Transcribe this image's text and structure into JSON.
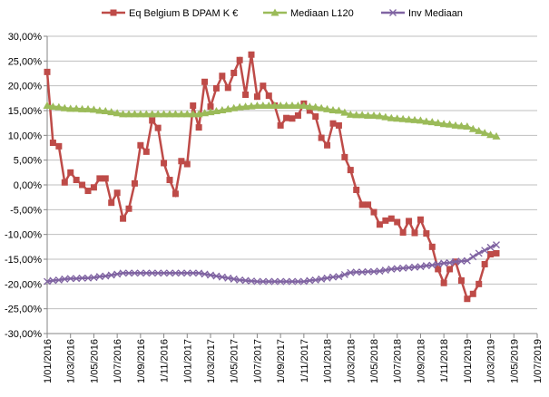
{
  "chart_data": {
    "type": "line",
    "categories": [
      "1/01/2016",
      null,
      null,
      null,
      "1/03/2016",
      null,
      null,
      null,
      "1/05/2016",
      null,
      null,
      null,
      "1/07/2016",
      null,
      null,
      null,
      "1/09/2016",
      null,
      null,
      null,
      "1/11/2016",
      null,
      null,
      null,
      "1/01/2017",
      null,
      null,
      null,
      "1/03/2017",
      null,
      null,
      null,
      "1/05/2017",
      null,
      null,
      null,
      "1/07/2017",
      null,
      null,
      null,
      "1/09/2017",
      null,
      null,
      null,
      "1/11/2017",
      null,
      null,
      null,
      "1/01/2018",
      null,
      null,
      null,
      "1/03/2018",
      null,
      null,
      null,
      "1/05/2018",
      null,
      null,
      null,
      "1/07/2018",
      null,
      null,
      null,
      "1/09/2018",
      null,
      null,
      null,
      "1/11/2018",
      null,
      null,
      null,
      "1/01/2019",
      null,
      null,
      null,
      "1/03/2019",
      null,
      null,
      null,
      "1/05/2019",
      null,
      null,
      null,
      "1/07/2019"
    ],
    "series": [
      {
        "name": "Eq Belgium B DPAM K €",
        "color": "#be4b48",
        "marker": "square",
        "values": [
          22.8,
          8.5,
          7.8,
          0.5,
          2.5,
          1.0,
          0,
          -1.2,
          -0.5,
          1.3,
          1.3,
          -3.6,
          -1.6,
          -6.8,
          -4.8,
          0.3,
          8,
          6.7,
          13,
          11.5,
          4.4,
          1,
          -1.8,
          4.8,
          4.2,
          16,
          11.6,
          20.8,
          15.8,
          19.5,
          22,
          19.6,
          22.6,
          25.2,
          18.2,
          26.3,
          17.8,
          20,
          18,
          16,
          12,
          13.5,
          13.4,
          14,
          16.4,
          15,
          13.8,
          9.5,
          8,
          12.4,
          12,
          5.6,
          3,
          -1,
          -4,
          -4,
          -5.5,
          -8,
          -7.2,
          -6.8,
          -7.5,
          -9.6,
          -7.3,
          -9.7,
          -7,
          -9.8,
          -12.5,
          -17,
          -19.8,
          -17,
          -15.5,
          -19.3,
          -23,
          -22,
          -20,
          -16,
          -14,
          -13.8,
          null,
          null,
          null,
          null,
          null,
          null,
          null
        ]
      },
      {
        "name": "Mediaan L120",
        "color": "#9bbb59",
        "marker": "triangle",
        "values": [
          16,
          15.8,
          15.7,
          15.5,
          15.4,
          15.4,
          15.3,
          15.3,
          15.2,
          15,
          14.9,
          14.7,
          14.5,
          14.3,
          14.3,
          14.3,
          14.3,
          14.3,
          14.3,
          14.3,
          14.3,
          14.3,
          14.3,
          14.3,
          14.3,
          14.3,
          14.3,
          14.5,
          14.7,
          14.9,
          15.1,
          15.3,
          15.5,
          15.7,
          15.8,
          15.9,
          16,
          16,
          16,
          16,
          16,
          16,
          16,
          16,
          16,
          15.8,
          15.7,
          15.5,
          15.3,
          15.1,
          15,
          14.6,
          14.2,
          14.1,
          14.1,
          14,
          14,
          13.9,
          13.7,
          13.5,
          13.4,
          13.3,
          13.2,
          13.1,
          13,
          12.8,
          12.7,
          12.5,
          12.3,
          12.2,
          12,
          11.9,
          11.8,
          11.3,
          10.9,
          10.5,
          10.1,
          9.8,
          null,
          null,
          null,
          null,
          null,
          null,
          null
        ]
      },
      {
        "name": "Inv Mediaan",
        "color": "#8064a2",
        "marker": "x",
        "values": [
          -19.5,
          -19.3,
          -19.2,
          -19,
          -18.9,
          -18.9,
          -18.8,
          -18.8,
          -18.7,
          -18.5,
          -18.4,
          -18.2,
          -18,
          -17.8,
          -17.8,
          -17.8,
          -17.8,
          -17.8,
          -17.8,
          -17.8,
          -17.8,
          -17.8,
          -17.8,
          -17.8,
          -17.8,
          -17.8,
          -17.8,
          -18,
          -18.2,
          -18.4,
          -18.6,
          -18.8,
          -19,
          -19.2,
          -19.3,
          -19.4,
          -19.5,
          -19.5,
          -19.5,
          -19.5,
          -19.5,
          -19.5,
          -19.5,
          -19.5,
          -19.5,
          -19.3,
          -19.2,
          -19,
          -18.8,
          -18.6,
          -18.5,
          -18.1,
          -17.7,
          -17.6,
          -17.6,
          -17.5,
          -17.5,
          -17.4,
          -17.2,
          -17,
          -16.9,
          -16.8,
          -16.7,
          -16.6,
          -16.5,
          -16.3,
          -16.2,
          -16,
          -15.8,
          -15.7,
          -15.5,
          -15.4,
          -15.3,
          -14.5,
          -13.8,
          -13.2,
          -12.6,
          -12.1,
          null,
          null,
          null,
          null,
          null,
          null,
          null
        ]
      }
    ],
    "ylim": [
      -30,
      30
    ],
    "yticks": [
      {
        "value": -30,
        "label": "-30,00%"
      },
      {
        "value": -25,
        "label": "-25,00%"
      },
      {
        "value": -20,
        "label": "-20,00%"
      },
      {
        "value": -15,
        "label": "-15,00%"
      },
      {
        "value": -10,
        "label": "-10,00%"
      },
      {
        "value": -5,
        "label": "-5,00%"
      },
      {
        "value": 0,
        "label": "0,00%"
      },
      {
        "value": 5,
        "label": "5,00%"
      },
      {
        "value": 10,
        "label": "10,00%"
      },
      {
        "value": 15,
        "label": "15,00%"
      },
      {
        "value": 20,
        "label": "20,00%"
      },
      {
        "value": 25,
        "label": "25,00%"
      },
      {
        "value": 30,
        "label": "30,00%"
      }
    ],
    "grid": true,
    "legend": "top"
  }
}
